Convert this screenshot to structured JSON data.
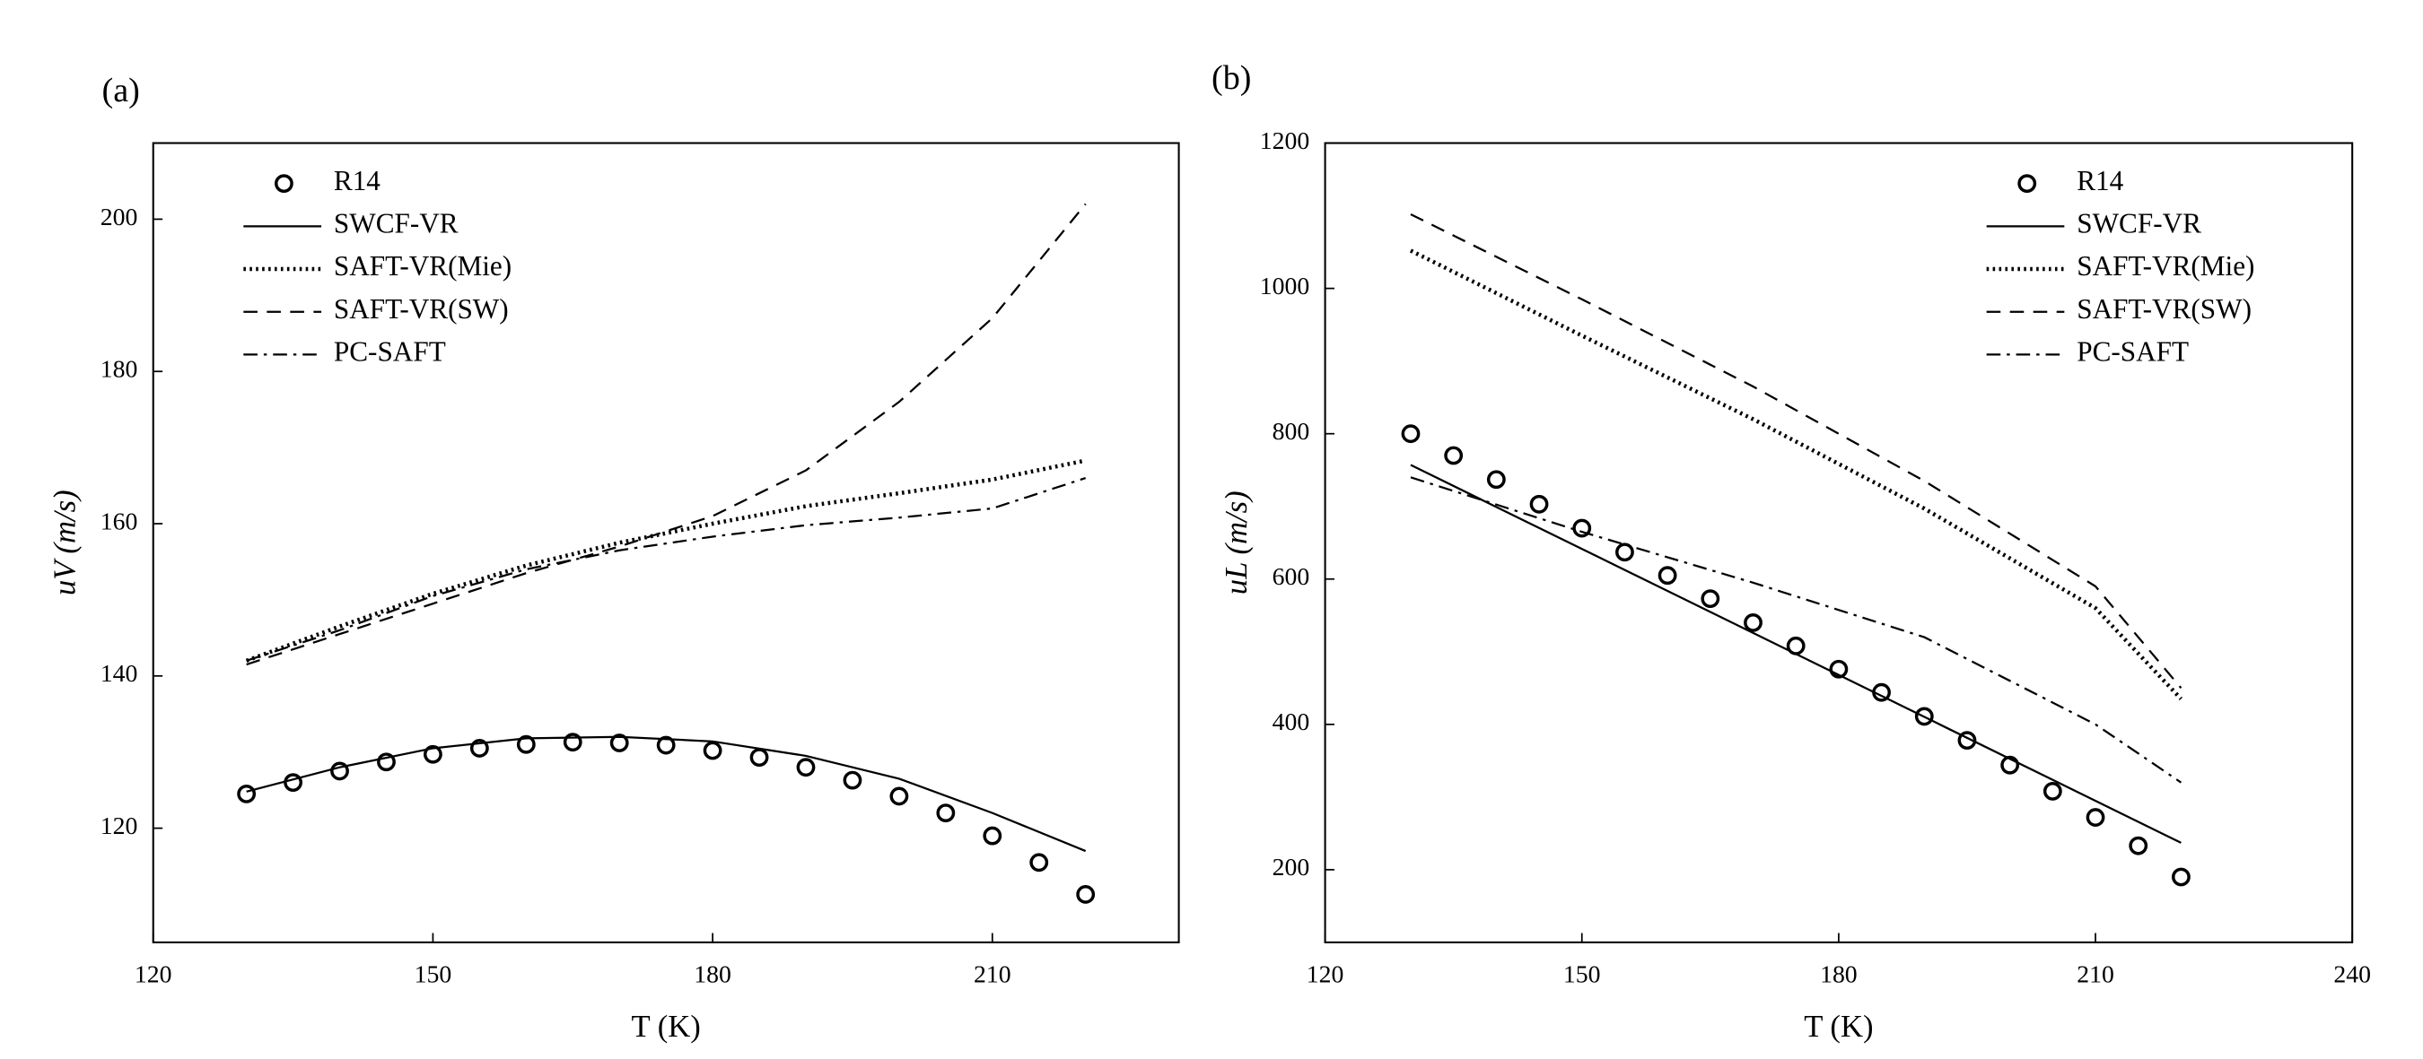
{
  "chart_data": [
    {
      "type": "line",
      "label": "(a)",
      "x_label": "T (K)",
      "y_label": "uV (m/s)",
      "xlim": [
        120,
        230
      ],
      "ylim": [
        105,
        210
      ],
      "xticks": [
        120,
        150,
        180,
        210
      ],
      "yticks": [
        120,
        140,
        160,
        180,
        200
      ],
      "legend": "upper left",
      "series": [
        {
          "name": "R14",
          "style": "marker",
          "color": "#000",
          "x": [
            130,
            135,
            140,
            145,
            150,
            155,
            160,
            165,
            170,
            175,
            180,
            185,
            190,
            195,
            200,
            205,
            210,
            215,
            220
          ],
          "values": [
            124.5,
            126,
            127.5,
            128.7,
            129.7,
            130.5,
            131,
            131.3,
            131.2,
            130.9,
            130.2,
            129.3,
            128,
            126.3,
            124.2,
            122,
            119,
            115.5,
            111.3
          ]
        },
        {
          "name": "SWCF-VR",
          "style": "solid",
          "color": "#000",
          "x": [
            130,
            140,
            150,
            160,
            170,
            180,
            190,
            200,
            210,
            220
          ],
          "values": [
            124.8,
            128,
            130.5,
            131.8,
            132,
            131.4,
            129.5,
            126.5,
            122,
            117
          ]
        },
        {
          "name": "SAFT-VR(Mie)",
          "style": "dotted",
          "color": "#000",
          "x": [
            130,
            140,
            150,
            160,
            170,
            180,
            190,
            200,
            210,
            220
          ],
          "values": [
            142,
            146.5,
            150.8,
            154.5,
            157.5,
            160,
            162.3,
            164,
            165.8,
            168.3
          ]
        },
        {
          "name": "SAFT-VR(SW)",
          "style": "dashed",
          "color": "#000",
          "x": [
            130,
            140,
            150,
            160,
            170,
            180,
            190,
            200,
            210,
            220
          ],
          "values": [
            141.5,
            145.5,
            149.5,
            153.5,
            157,
            161,
            167,
            176,
            187,
            202
          ]
        },
        {
          "name": "PC-SAFT",
          "style": "dashdot",
          "color": "#000",
          "x": [
            130,
            140,
            150,
            160,
            170,
            180,
            190,
            200,
            210,
            220
          ],
          "values": [
            142,
            146,
            150.5,
            154,
            156.5,
            158.3,
            159.8,
            160.8,
            162,
            166
          ]
        }
      ]
    },
    {
      "type": "line",
      "label": "(b)",
      "x_label": "T (K)",
      "y_label": "uL (m/s)",
      "xlim": [
        120,
        240
      ],
      "ylim": [
        100,
        1200
      ],
      "xticks": [
        120,
        150,
        180,
        210,
        240
      ],
      "yticks": [
        200,
        400,
        600,
        800,
        1000,
        1200
      ],
      "legend": "upper right",
      "series": [
        {
          "name": "R14",
          "style": "marker",
          "color": "#000",
          "x": [
            130,
            135,
            140,
            145,
            150,
            155,
            160,
            165,
            170,
            175,
            180,
            185,
            190,
            195,
            200,
            205,
            210,
            215,
            220
          ],
          "values": [
            800,
            770,
            737,
            703,
            670,
            637,
            605,
            573,
            540,
            508,
            476,
            444,
            411,
            378,
            344,
            308,
            272,
            233,
            190
          ]
        },
        {
          "name": "SWCF-VR",
          "style": "solid",
          "color": "#000",
          "x": [
            130,
            175,
            220
          ],
          "values": [
            757,
            497,
            237
          ]
        },
        {
          "name": "SAFT-VR(Mie)",
          "style": "dotted",
          "color": "#000",
          "x": [
            130,
            150,
            170,
            190,
            210,
            220
          ],
          "values": [
            1052,
            935,
            820,
            697,
            560,
            435
          ]
        },
        {
          "name": "SAFT-VR(SW)",
          "style": "dashed",
          "color": "#000",
          "x": [
            130,
            150,
            170,
            190,
            210,
            220
          ],
          "values": [
            1102,
            985,
            865,
            735,
            590,
            450
          ]
        },
        {
          "name": "PC-SAFT",
          "style": "dashdot",
          "color": "#000",
          "x": [
            130,
            150,
            170,
            190,
            210,
            220
          ],
          "values": [
            740,
            665,
            595,
            520,
            400,
            320
          ]
        }
      ]
    }
  ]
}
